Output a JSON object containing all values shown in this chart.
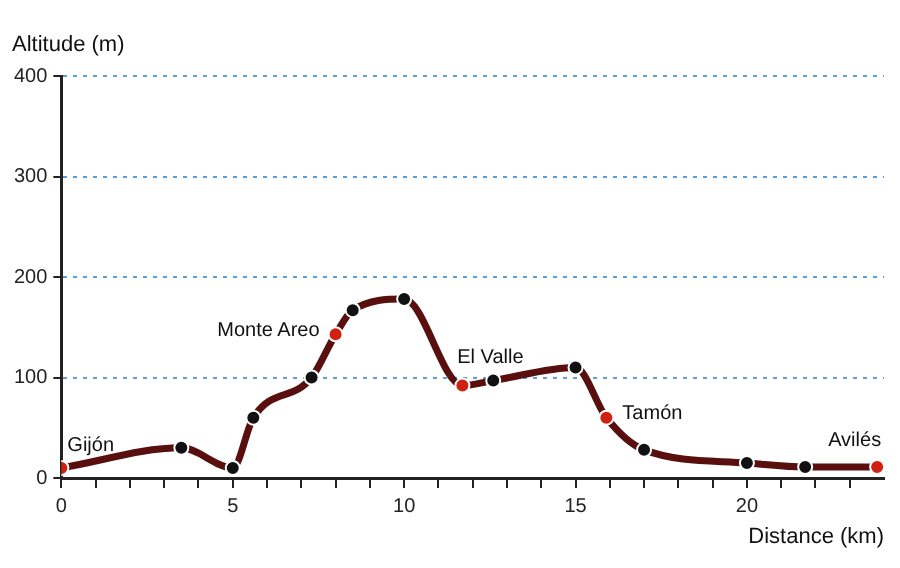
{
  "chart_data": {
    "type": "line",
    "xlabel": "Distance (km)",
    "ylabel": "Altitude (m)",
    "series": [
      {
        "color": "#5a0f0f",
        "x": [
          0,
          3.5,
          5,
          5.6,
          7.3,
          8,
          8.5,
          10,
          11.7,
          12.6,
          15,
          15.9,
          17,
          20,
          21.7,
          23.8
        ],
        "values": [
          10,
          30,
          10,
          60,
          100,
          143,
          167,
          178,
          92,
          97,
          110,
          60,
          28,
          15,
          11,
          11
        ],
        "colors": [
          "#d02010",
          "#111111",
          "#111111",
          "#111111",
          "#111111",
          "#d02010",
          "#111111",
          "#111111",
          "#d02010",
          "#111111",
          "#111111",
          "#d02010",
          "#111111",
          "#111111",
          "#111111",
          "#d02010"
        ]
      }
    ],
    "xlim": [
      0,
      24
    ],
    "xticks": [
      0,
      {
        "value": 1,
        "label": null
      },
      {
        "value": 2,
        "label": null
      },
      {
        "value": 3,
        "label": null
      },
      {
        "value": 4,
        "label": null
      },
      5,
      {
        "value": 6,
        "label": null
      },
      {
        "value": 7,
        "label": null
      },
      {
        "value": 8,
        "label": null
      },
      {
        "value": 9,
        "label": null
      },
      10,
      {
        "value": 11,
        "label": null
      },
      {
        "value": 12,
        "label": null
      },
      {
        "value": 13,
        "label": null
      },
      {
        "value": 14,
        "label": null
      },
      15,
      {
        "value": 16,
        "label": null
      },
      {
        "value": 17,
        "label": null
      },
      {
        "value": 18,
        "label": null
      },
      {
        "value": 19,
        "label": null
      },
      20,
      {
        "value": 21,
        "label": null
      },
      {
        "value": 22,
        "label": null
      },
      {
        "value": 23,
        "label": null
      }
    ],
    "ylim": [
      0,
      400
    ],
    "yticks": [
      0,
      100,
      200,
      300,
      400
    ],
    "grid": "y",
    "marker": "circle",
    "line_style": "solid",
    "legend": false,
    "annotations": [
      {
        "text": "Gijón",
        "x": 0,
        "y": 10
      },
      {
        "text": "Monte Areo",
        "x": 8,
        "y": 143
      },
      {
        "text": "El Valle",
        "x": 11.7,
        "y": 92
      },
      {
        "text": "Tamón",
        "x": 15.9,
        "y": 60
      },
      {
        "text": "Avilés",
        "x": 23.8,
        "y": 11
      }
    ]
  }
}
